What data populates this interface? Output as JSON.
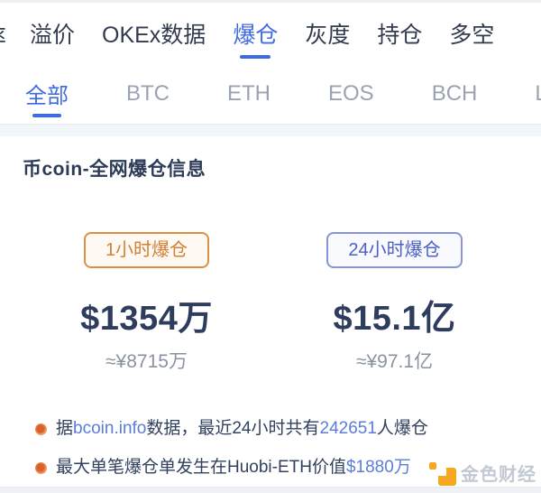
{
  "nav": {
    "clipped_item": "率",
    "items": [
      {
        "label": "溢价",
        "active": false
      },
      {
        "label": "OKEx数据",
        "active": false
      },
      {
        "label": "爆仓",
        "active": true
      },
      {
        "label": "灰度",
        "active": false
      },
      {
        "label": "持仓",
        "active": false
      },
      {
        "label": "多空",
        "active": false
      }
    ]
  },
  "coin_tabs": {
    "items": [
      {
        "label": "全部",
        "active": true
      },
      {
        "label": "BTC",
        "active": false
      },
      {
        "label": "ETH",
        "active": false
      },
      {
        "label": "EOS",
        "active": false
      },
      {
        "label": "BCH",
        "active": false
      },
      {
        "label": "LTC",
        "active": false
      }
    ]
  },
  "card": {
    "title": "币coin-全网爆仓信息",
    "stats": [
      {
        "badge": "1小时爆仓",
        "value": "$1354万",
        "approx": "≈¥8715万",
        "theme": "orange"
      },
      {
        "badge": "24小时爆仓",
        "value": "$15.1亿",
        "approx": "≈¥97.1亿",
        "theme": "blue"
      }
    ],
    "notes": [
      {
        "segments": [
          {
            "text": "据",
            "link": false,
            "clickable": false
          },
          {
            "text": "bcoin.info",
            "link": true,
            "clickable": true
          },
          {
            "text": "数据，最近24小时共有",
            "link": false,
            "clickable": false
          },
          {
            "text": "242651",
            "link": true,
            "clickable": false
          },
          {
            "text": "人爆仓",
            "link": false,
            "clickable": false
          }
        ]
      },
      {
        "segments": [
          {
            "text": "最大单笔爆仓单发生在Huobi-ETH价值",
            "link": false,
            "clickable": false
          },
          {
            "text": "$1880万",
            "link": true,
            "clickable": false
          }
        ]
      }
    ]
  },
  "watermark": {
    "brand": "金色财经"
  },
  "colors": {
    "accent_blue": "#3f6be0",
    "link_blue": "#5a7cdb",
    "dark_navy": "#2c3b58",
    "value_navy": "#2e3d5e",
    "orange_badge": "#d28036",
    "blue_badge": "#4d60c6",
    "inactive_gray": "#9aa3b2",
    "watermark_orange": "#f7a823"
  }
}
